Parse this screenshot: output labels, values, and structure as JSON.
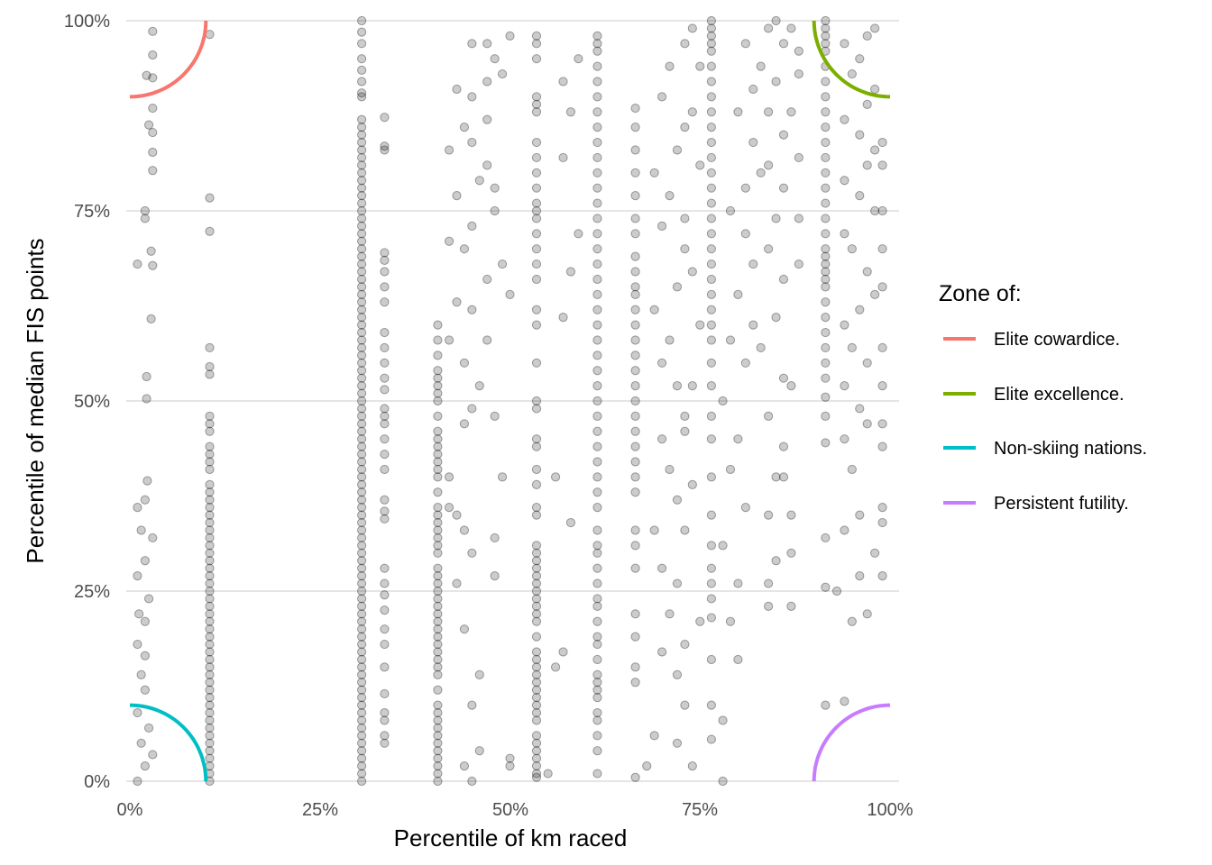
{
  "chart_data": {
    "type": "scatter",
    "title": "",
    "xlabel": "Percentile of km raced",
    "ylabel": "Percentile of median FIS points",
    "xlim": [
      0,
      100
    ],
    "ylim": [
      0,
      100
    ],
    "x_ticks": [
      "0%",
      "25%",
      "50%",
      "75%",
      "100%"
    ],
    "y_ticks": [
      "0%",
      "25%",
      "50%",
      "75%",
      "100%"
    ],
    "grid": true,
    "point_style": {
      "color": "#000000",
      "opacity": 0.2
    },
    "legend": {
      "title": "Zone of:",
      "position": "right",
      "entries": [
        {
          "label": "Elite cowardice.",
          "color": "#F8766D",
          "center": [
            0,
            100
          ],
          "radius": 10
        },
        {
          "label": "Elite excellence.",
          "color": "#7CAE00",
          "center": [
            100,
            100
          ],
          "radius": 10
        },
        {
          "label": "Non-skiing nations.",
          "color": "#00BFC4",
          "center": [
            0,
            0
          ],
          "radius": 10
        },
        {
          "label": "Persistent futility.",
          "color": "#C77CFF",
          "center": [
            100,
            0
          ],
          "radius": 10
        }
      ]
    },
    "columns": [
      {
        "x": 10.5,
        "y": [
          0,
          1,
          2,
          3,
          4,
          5,
          6,
          7,
          8,
          9,
          10,
          11,
          12,
          13,
          14,
          15,
          16,
          17,
          18,
          19,
          20,
          21,
          22,
          23,
          24,
          25,
          26,
          27,
          28,
          29,
          30,
          31,
          32,
          33,
          34,
          35,
          36,
          37,
          38,
          39,
          41,
          42,
          43,
          44,
          46,
          47,
          48,
          53.5,
          54.5,
          57,
          72.3,
          76.7,
          98.2
        ]
      },
      {
        "x": 30.5,
        "y": [
          0,
          1,
          2,
          3,
          4,
          5,
          6,
          7,
          8,
          9,
          10,
          11,
          12,
          13,
          14,
          15,
          16,
          17,
          18,
          19,
          20,
          21,
          22,
          23,
          24,
          25,
          26,
          27,
          28,
          29,
          30,
          31,
          32,
          33,
          34,
          35,
          36,
          37,
          38,
          39,
          40,
          41,
          42,
          43,
          44,
          45,
          46,
          47,
          48,
          49,
          50,
          51,
          52,
          53,
          54,
          55,
          56,
          57,
          58,
          59,
          60,
          61,
          62,
          63,
          64,
          65,
          66,
          67,
          68,
          69,
          70,
          71,
          72,
          73,
          74,
          75,
          76,
          77,
          78,
          79,
          80,
          81,
          82,
          83,
          84,
          85,
          86,
          87,
          90,
          90.5,
          92,
          93.5,
          95,
          97,
          98.5,
          100
        ]
      },
      {
        "x": 33.5,
        "y": [
          5,
          6,
          8,
          9,
          11.5,
          15,
          18,
          20,
          22.5,
          24.5,
          26,
          28,
          34.5,
          35.5,
          37,
          41,
          43,
          45,
          47,
          48,
          49,
          51.5,
          53,
          55,
          57,
          59,
          63,
          65,
          67,
          68.5,
          69.5,
          83,
          83.5,
          87.3
        ]
      },
      {
        "x": 40.5,
        "y": [
          0,
          1,
          2,
          3,
          4,
          5,
          6,
          7,
          8,
          9,
          10,
          12,
          14,
          15,
          16,
          17,
          18,
          19,
          20,
          21,
          22,
          23,
          24,
          25,
          26,
          27,
          28,
          30,
          31,
          32,
          33,
          34,
          35,
          36,
          38,
          40,
          41,
          42,
          43,
          44,
          45,
          46,
          48,
          50,
          51,
          52,
          53,
          54,
          56,
          58,
          60
        ]
      },
      {
        "x": 53.5,
        "y": [
          0.5,
          1,
          2,
          3,
          4,
          5,
          6,
          8,
          9,
          10,
          11,
          12,
          13,
          14,
          15,
          16,
          17,
          19,
          21,
          22,
          23,
          24,
          25,
          26,
          27,
          28,
          29,
          30,
          31,
          35,
          36,
          39,
          41,
          44,
          45,
          49,
          50,
          55,
          60,
          62,
          66,
          68,
          70,
          72,
          74,
          75,
          76,
          78,
          80,
          82,
          84,
          88,
          89,
          90,
          95,
          97,
          98
        ]
      },
      {
        "x": 61.5,
        "y": [
          1,
          4,
          6,
          8,
          9,
          11,
          12,
          13,
          14,
          16,
          18,
          19,
          21,
          23,
          24,
          26,
          28,
          30,
          31,
          33,
          36,
          38,
          40,
          42,
          44,
          46,
          48,
          50,
          52,
          54,
          56,
          58,
          60,
          62,
          64,
          66,
          68,
          70,
          72,
          74,
          76,
          78,
          80,
          82,
          84,
          86,
          88,
          90,
          92,
          94,
          96,
          97,
          98
        ]
      },
      {
        "x": 66.5,
        "y": [
          0.5,
          13,
          15,
          19,
          22,
          28,
          31,
          33,
          38,
          40,
          42,
          44,
          46,
          48,
          50,
          52,
          54,
          56,
          58,
          60,
          62,
          64,
          65,
          67,
          69,
          72,
          74,
          77,
          80,
          83,
          86,
          88.5
        ]
      },
      {
        "x": 76.5,
        "y": [
          5.5,
          10,
          16,
          21.5,
          24,
          26,
          28,
          31,
          35,
          40,
          45,
          48,
          52,
          55,
          58,
          60,
          62,
          64,
          66,
          68,
          70,
          72,
          74,
          76,
          78,
          80,
          82,
          84,
          86,
          88,
          90,
          92,
          94,
          96,
          97,
          98,
          99,
          100
        ]
      },
      {
        "x": 91.5,
        "y": [
          10,
          25.5,
          32,
          44.5,
          48,
          50.5,
          53,
          55,
          57,
          59,
          61,
          63,
          65,
          66,
          67,
          68,
          69,
          70,
          72,
          74,
          76,
          78,
          80,
          82,
          84,
          86,
          88,
          90,
          92,
          94,
          96,
          97,
          98,
          99,
          100
        ]
      }
    ],
    "scatter": [
      [
        1,
        0
      ],
      [
        2,
        2
      ],
      [
        3,
        3.5
      ],
      [
        1.5,
        5
      ],
      [
        2.5,
        7
      ],
      [
        1,
        9
      ],
      [
        2,
        12
      ],
      [
        1.5,
        14
      ],
      [
        2,
        16.5
      ],
      [
        1,
        18
      ],
      [
        2,
        21
      ],
      [
        1.2,
        22
      ],
      [
        2.5,
        24
      ],
      [
        1,
        27
      ],
      [
        2,
        29
      ],
      [
        3,
        32
      ],
      [
        1.5,
        33
      ],
      [
        1,
        36
      ],
      [
        2,
        37
      ],
      [
        2.3,
        39.5
      ],
      [
        2.2,
        50.3
      ],
      [
        2.2,
        53.2
      ],
      [
        2.8,
        60.8
      ],
      [
        1,
        68
      ],
      [
        3,
        67.8
      ],
      [
        2.8,
        69.7
      ],
      [
        2,
        74
      ],
      [
        2,
        75
      ],
      [
        3,
        80.3
      ],
      [
        3,
        82.7
      ],
      [
        3,
        85.3
      ],
      [
        2.5,
        86.3
      ],
      [
        3,
        88.5
      ],
      [
        2.2,
        92.8
      ],
      [
        3,
        92.5
      ],
      [
        3,
        95.5
      ],
      [
        3,
        98.6
      ],
      [
        42,
        36
      ],
      [
        43,
        35
      ],
      [
        44,
        33
      ],
      [
        45,
        30
      ],
      [
        44,
        20
      ],
      [
        43,
        26
      ],
      [
        46,
        14
      ],
      [
        45,
        10
      ],
      [
        46,
        4
      ],
      [
        44,
        2
      ],
      [
        45,
        0
      ],
      [
        42,
        40
      ],
      [
        44,
        47
      ],
      [
        45,
        49
      ],
      [
        46,
        52
      ],
      [
        44,
        55
      ],
      [
        42,
        58
      ],
      [
        45,
        62
      ],
      [
        47,
        66
      ],
      [
        43,
        63
      ],
      [
        44,
        70
      ],
      [
        45,
        73
      ],
      [
        48,
        75
      ],
      [
        43,
        77
      ],
      [
        46,
        79
      ],
      [
        42,
        83
      ],
      [
        44,
        86
      ],
      [
        47,
        87
      ],
      [
        45,
        90
      ],
      [
        43,
        91
      ],
      [
        47,
        92
      ],
      [
        49,
        93
      ],
      [
        45,
        97
      ],
      [
        47,
        97
      ],
      [
        50,
        98
      ],
      [
        48,
        95
      ],
      [
        42,
        71
      ],
      [
        49,
        68
      ],
      [
        50,
        64
      ],
      [
        47,
        58
      ],
      [
        48,
        48
      ],
      [
        49,
        40
      ],
      [
        48,
        32
      ],
      [
        48,
        27
      ],
      [
        50,
        3
      ],
      [
        50,
        2
      ],
      [
        47,
        81
      ],
      [
        48,
        78
      ],
      [
        45,
        84
      ],
      [
        56,
        15
      ],
      [
        57,
        17
      ],
      [
        55,
        1
      ],
      [
        58,
        34
      ],
      [
        56,
        40
      ],
      [
        57,
        61
      ],
      [
        58,
        67
      ],
      [
        59,
        72
      ],
      [
        57,
        82
      ],
      [
        58,
        88
      ],
      [
        59,
        95
      ],
      [
        57,
        92
      ],
      [
        68,
        2
      ],
      [
        69,
        6
      ],
      [
        70,
        17
      ],
      [
        71,
        22
      ],
      [
        70,
        28
      ],
      [
        69,
        33
      ],
      [
        72,
        37
      ],
      [
        71,
        41
      ],
      [
        70,
        45
      ],
      [
        73,
        48
      ],
      [
        72,
        52
      ],
      [
        70,
        55
      ],
      [
        71,
        58
      ],
      [
        69,
        62
      ],
      [
        72,
        65
      ],
      [
        73,
        70
      ],
      [
        70,
        73
      ],
      [
        71,
        77
      ],
      [
        69,
        80
      ],
      [
        72,
        83
      ],
      [
        73,
        86
      ],
      [
        70,
        90
      ],
      [
        71,
        94
      ],
      [
        73,
        97
      ],
      [
        74,
        99
      ],
      [
        75,
        94
      ],
      [
        74,
        88
      ],
      [
        75,
        81
      ],
      [
        73,
        74
      ],
      [
        74,
        67
      ],
      [
        75,
        60
      ],
      [
        74,
        52
      ],
      [
        73,
        46
      ],
      [
        74,
        39
      ],
      [
        73,
        33
      ],
      [
        72,
        26
      ],
      [
        73,
        18
      ],
      [
        72,
        14
      ],
      [
        73,
        10
      ],
      [
        72,
        5
      ],
      [
        74,
        2
      ],
      [
        75,
        21
      ],
      [
        78,
        0
      ],
      [
        78,
        8
      ],
      [
        80,
        16
      ],
      [
        79,
        21
      ],
      [
        80,
        26
      ],
      [
        78,
        31
      ],
      [
        81,
        36
      ],
      [
        79,
        41
      ],
      [
        80,
        45
      ],
      [
        78,
        50
      ],
      [
        81,
        55
      ],
      [
        79,
        58
      ],
      [
        82,
        60
      ],
      [
        80,
        64
      ],
      [
        82,
        68
      ],
      [
        81,
        72
      ],
      [
        79,
        75
      ],
      [
        81,
        78
      ],
      [
        83,
        80
      ],
      [
        82,
        84
      ],
      [
        80,
        88
      ],
      [
        82,
        91
      ],
      [
        83,
        94
      ],
      [
        81,
        97
      ],
      [
        84,
        99
      ],
      [
        85,
        100
      ],
      [
        86,
        97
      ],
      [
        85,
        92
      ],
      [
        84,
        88
      ],
      [
        86,
        85
      ],
      [
        84,
        81
      ],
      [
        86,
        78
      ],
      [
        85,
        74
      ],
      [
        84,
        70
      ],
      [
        86,
        66
      ],
      [
        85,
        61
      ],
      [
        83,
        57
      ],
      [
        86,
        53
      ],
      [
        84,
        48
      ],
      [
        86,
        44
      ],
      [
        85,
        40
      ],
      [
        84,
        35
      ],
      [
        85,
        29
      ],
      [
        84,
        26
      ],
      [
        84,
        23
      ],
      [
        87,
        23
      ],
      [
        87,
        30
      ],
      [
        87,
        35
      ],
      [
        86,
        40
      ],
      [
        87,
        52
      ],
      [
        88,
        68
      ],
      [
        88,
        74
      ],
      [
        88,
        82
      ],
      [
        87,
        88
      ],
      [
        88,
        93
      ],
      [
        87,
        99
      ],
      [
        88,
        96
      ],
      [
        94,
        10.5
      ],
      [
        95,
        21
      ],
      [
        96,
        27
      ],
      [
        97,
        22
      ],
      [
        93,
        25
      ],
      [
        94,
        33
      ],
      [
        96,
        35
      ],
      [
        95,
        41
      ],
      [
        94,
        45
      ],
      [
        97,
        47
      ],
      [
        96,
        49
      ],
      [
        94,
        52
      ],
      [
        97,
        55
      ],
      [
        95,
        57
      ],
      [
        94,
        60
      ],
      [
        96,
        62
      ],
      [
        98,
        64
      ],
      [
        97,
        67
      ],
      [
        95,
        70
      ],
      [
        94,
        72
      ],
      [
        98,
        75
      ],
      [
        96,
        77
      ],
      [
        94,
        79
      ],
      [
        97,
        81
      ],
      [
        98,
        83
      ],
      [
        96,
        85
      ],
      [
        94,
        87
      ],
      [
        97,
        89
      ],
      [
        98,
        91
      ],
      [
        95,
        93
      ],
      [
        96,
        95
      ],
      [
        94,
        97
      ],
      [
        97,
        98
      ],
      [
        98,
        99
      ],
      [
        99,
        84
      ],
      [
        99,
        81
      ],
      [
        99,
        75
      ],
      [
        99,
        70
      ],
      [
        99,
        65
      ],
      [
        99,
        57
      ],
      [
        99,
        52
      ],
      [
        99,
        47
      ],
      [
        99,
        44
      ],
      [
        99,
        36
      ],
      [
        99,
        34
      ],
      [
        98,
        30
      ],
      [
        99,
        27
      ]
    ]
  }
}
